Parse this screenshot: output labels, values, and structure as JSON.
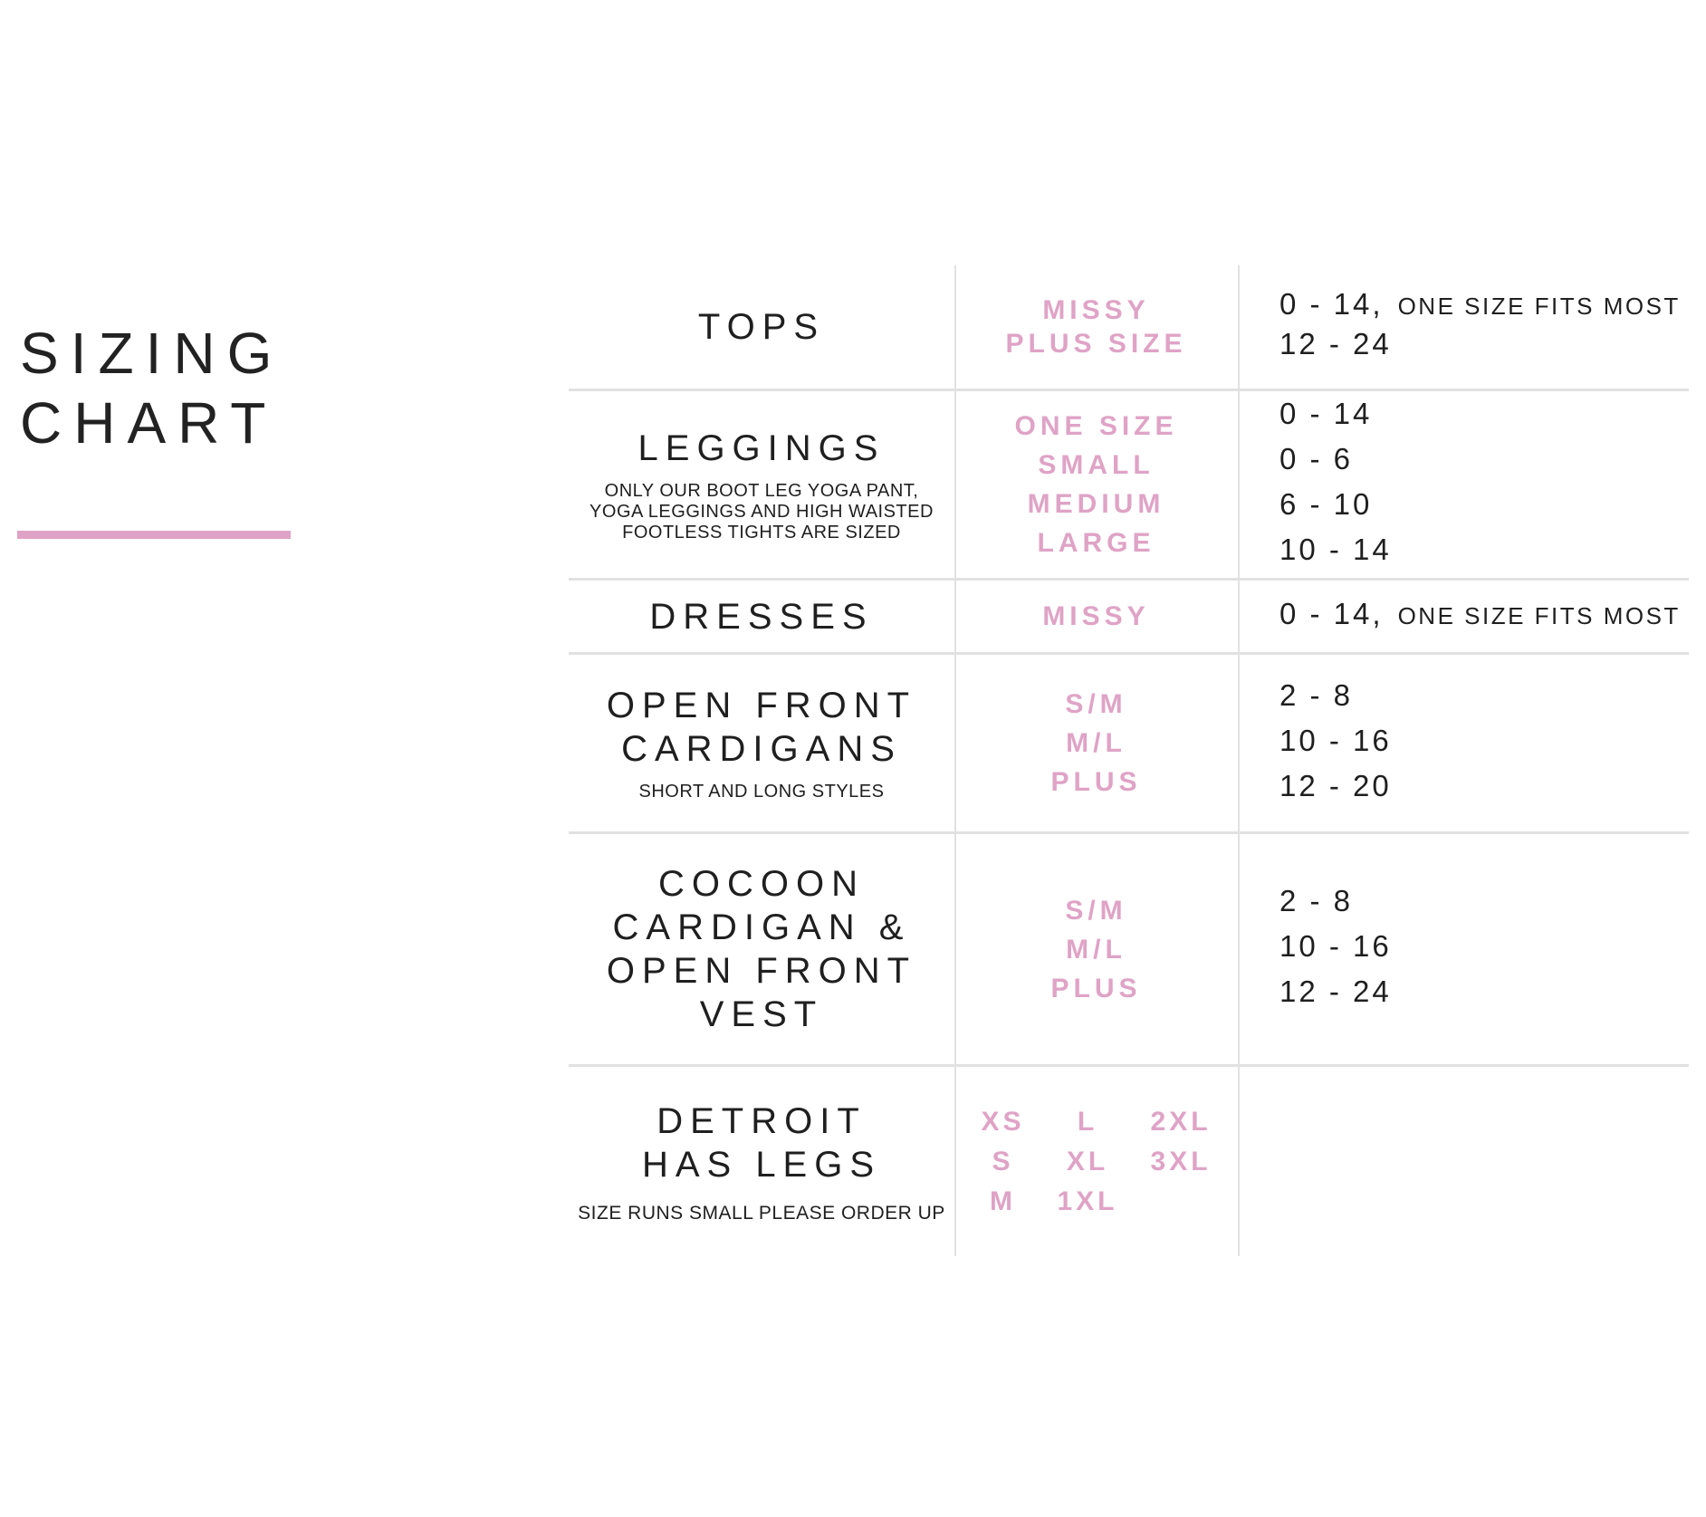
{
  "title": {
    "line1": "SIZING",
    "line2": "CHART"
  },
  "colors": {
    "accent_pink": "#dfa3c6",
    "divider_gray": "#e1e1e1",
    "text_black": "#1f1f1f"
  },
  "table": {
    "rows": [
      {
        "name_lines": [
          "TOPS"
        ],
        "subtitle_lines": [],
        "sizes": [
          "MISSY",
          "PLUS SIZE"
        ],
        "ranges": [
          {
            "value": "0 - 14,",
            "note": "ONE SIZE FITS MOST"
          },
          {
            "value": "12 - 24",
            "note": ""
          }
        ]
      },
      {
        "name_lines": [
          "LEGGINGS"
        ],
        "subtitle_lines": [
          "ONLY OUR BOOT LEG YOGA PANT,",
          "YOGA LEGGINGS AND HIGH WAISTED",
          "FOOTLESS TIGHTS ARE SIZED"
        ],
        "sizes": [
          "ONE SIZE",
          "SMALL",
          "MEDIUM",
          "LARGE"
        ],
        "ranges": [
          {
            "value": "0 - 14",
            "note": ""
          },
          {
            "value": "0 - 6",
            "note": ""
          },
          {
            "value": "6 - 10",
            "note": ""
          },
          {
            "value": "10 - 14",
            "note": ""
          }
        ]
      },
      {
        "name_lines": [
          "DRESSES"
        ],
        "subtitle_lines": [],
        "sizes": [
          "MISSY"
        ],
        "ranges": [
          {
            "value": "0 - 14,",
            "note": "ONE SIZE FITS MOST"
          }
        ]
      },
      {
        "name_lines": [
          "OPEN FRONT",
          "CARDIGANS"
        ],
        "subtitle_lines": [
          "SHORT AND LONG STYLES"
        ],
        "sizes": [
          "S/M",
          "M/L",
          "PLUS"
        ],
        "ranges": [
          {
            "value": "2 - 8",
            "note": ""
          },
          {
            "value": "10 - 16",
            "note": ""
          },
          {
            "value": "12 - 20",
            "note": ""
          }
        ]
      },
      {
        "name_lines": [
          "COCOON",
          "CARDIGAN &",
          "OPEN FRONT",
          "VEST"
        ],
        "subtitle_lines": [],
        "sizes": [
          "S/M",
          "M/L",
          "PLUS"
        ],
        "ranges": [
          {
            "value": "2 - 8",
            "note": ""
          },
          {
            "value": "10 - 16",
            "note": ""
          },
          {
            "value": "12 - 24",
            "note": ""
          }
        ]
      },
      {
        "name_lines": [
          "DETROIT",
          "HAS LEGS"
        ],
        "subtitle_lines": [
          "SIZE RUNS SMALL PLEASE ORDER UP"
        ],
        "size_grid": [
          [
            "XS",
            "L",
            "2XL"
          ],
          [
            "S",
            "XL",
            "3XL"
          ],
          [
            "M",
            "1XL",
            ""
          ]
        ],
        "ranges": []
      }
    ]
  }
}
